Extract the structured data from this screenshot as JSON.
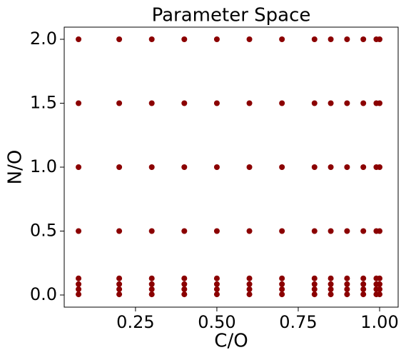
{
  "chart_data": {
    "type": "scatter",
    "title": "Parameter Space",
    "x_label": "C/O",
    "y_label": "N/O",
    "color": "#8b0000",
    "x": [
      0.075,
      0.075,
      0.075,
      0.075,
      0.075,
      0.075,
      0.075,
      0.075,
      0.2,
      0.2,
      0.2,
      0.2,
      0.2,
      0.2,
      0.2,
      0.2,
      0.3,
      0.3,
      0.3,
      0.3,
      0.3,
      0.3,
      0.3,
      0.3,
      0.4,
      0.4,
      0.4,
      0.4,
      0.4,
      0.4,
      0.4,
      0.4,
      0.5,
      0.5,
      0.5,
      0.5,
      0.5,
      0.5,
      0.5,
      0.5,
      0.6,
      0.6,
      0.6,
      0.6,
      0.6,
      0.6,
      0.6,
      0.6,
      0.7,
      0.7,
      0.7,
      0.7,
      0.7,
      0.7,
      0.7,
      0.7,
      0.8,
      0.8,
      0.8,
      0.8,
      0.8,
      0.8,
      0.8,
      0.8,
      0.85,
      0.85,
      0.85,
      0.85,
      0.85,
      0.85,
      0.85,
      0.85,
      0.9,
      0.9,
      0.9,
      0.9,
      0.9,
      0.9,
      0.9,
      0.9,
      0.95,
      0.95,
      0.95,
      0.95,
      0.95,
      0.95,
      0.95,
      0.95,
      0.99,
      0.99,
      0.99,
      0.99,
      0.99,
      0.99,
      0.99,
      0.99,
      1,
      1,
      1,
      1,
      1,
      1,
      1,
      1
    ],
    "y": [
      0.005,
      0.045,
      0.085,
      0.13,
      0.5,
      1,
      1.5,
      2,
      0.005,
      0.045,
      0.085,
      0.13,
      0.5,
      1,
      1.5,
      2,
      0.005,
      0.045,
      0.085,
      0.13,
      0.5,
      1,
      1.5,
      2,
      0.005,
      0.045,
      0.085,
      0.13,
      0.5,
      1,
      1.5,
      2,
      0.005,
      0.045,
      0.085,
      0.13,
      0.5,
      1,
      1.5,
      2,
      0.005,
      0.045,
      0.085,
      0.13,
      0.5,
      1,
      1.5,
      2,
      0.005,
      0.045,
      0.085,
      0.13,
      0.5,
      1,
      1.5,
      2,
      0.005,
      0.045,
      0.085,
      0.13,
      0.5,
      1,
      1.5,
      2,
      0.005,
      0.045,
      0.085,
      0.13,
      0.5,
      1,
      1.5,
      2,
      0.005,
      0.045,
      0.085,
      0.13,
      0.5,
      1,
      1.5,
      2,
      0.005,
      0.045,
      0.085,
      0.13,
      0.5,
      1,
      1.5,
      2,
      0.005,
      0.045,
      0.085,
      0.13,
      0.5,
      1,
      1.5,
      2,
      0.005,
      0.045,
      0.085,
      0.13,
      0.5,
      1,
      1.5,
      2
    ],
    "xlim": [
      0.031,
      1.057
    ],
    "ylim": [
      -0.095,
      2.095
    ],
    "xticks": [
      {
        "value": 0.25,
        "label": "0.25"
      },
      {
        "value": 0.5,
        "label": "0.50"
      },
      {
        "value": 0.75,
        "label": "0.75"
      },
      {
        "value": 1,
        "label": "1.00"
      }
    ],
    "yticks": [
      {
        "value": 0,
        "label": "0.0"
      },
      0.5,
      {
        "value": 1,
        "label": "1.0"
      },
      1.5,
      {
        "value": 2,
        "label": "2.0"
      }
    ],
    "grid": false
  }
}
